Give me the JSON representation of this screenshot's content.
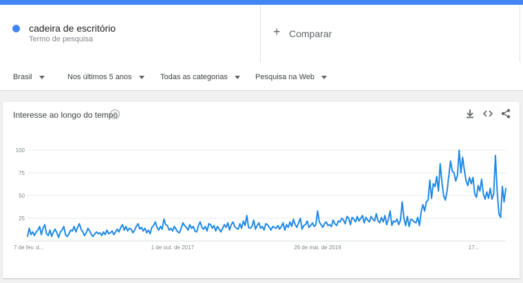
{
  "search": {
    "term": "cadeira de escritório",
    "term_subtitle": "Termo de pesquisa",
    "term_color": "#4285f4",
    "compare_label": "Comparar",
    "compare_icon": "plus-icon"
  },
  "filters": {
    "region": "Brasil",
    "period": "Nos últimos 5 anos",
    "category": "Todas as categorias",
    "search_type": "Pesquisa na Web"
  },
  "card": {
    "title": "Interesse ao longo do tempo",
    "help_icon": "?",
    "tools": [
      "download-icon",
      "embed-icon",
      "share-icon"
    ]
  },
  "chart_data": {
    "type": "line",
    "ylim": [
      0,
      100
    ],
    "yticks": [
      25,
      50,
      75,
      100
    ],
    "ytick_labels": [
      "25",
      "50",
      "75",
      "100"
    ],
    "xtick_labels": [
      "7 de fev. d...",
      "1 de out. de 2017",
      "26 de mai. de 2019",
      "17..."
    ],
    "xtick_index": [
      0,
      84,
      168,
      260
    ],
    "grid": true,
    "line_color": "#1e88e5",
    "series": [
      {
        "values": [
          5,
          14,
          7,
          10,
          6,
          10,
          12,
          16,
          7,
          14,
          18,
          8,
          6,
          12,
          5,
          10,
          13,
          9,
          4,
          10,
          12,
          16,
          7,
          5,
          8,
          12,
          11,
          16,
          10,
          15,
          19,
          13,
          10,
          6,
          9,
          14,
          11,
          7,
          5,
          8,
          10,
          8,
          9,
          6,
          10,
          7,
          12,
          8,
          9,
          11,
          7,
          10,
          13,
          10,
          15,
          18,
          12,
          16,
          11,
          14,
          13,
          9,
          12,
          16,
          19,
          13,
          15,
          11,
          14,
          9,
          12,
          8,
          15,
          17,
          21,
          15,
          12,
          16,
          13,
          24,
          18,
          17,
          12,
          14,
          11,
          16,
          13,
          10,
          9,
          14,
          20,
          17,
          15,
          12,
          18,
          14,
          16,
          11,
          10,
          17,
          21,
          15,
          13,
          16,
          11,
          19,
          18,
          14,
          17,
          11,
          16,
          13,
          10,
          14,
          18,
          15,
          20,
          12,
          18,
          21,
          16,
          14,
          13,
          19,
          14,
          22,
          17,
          28,
          15,
          14,
          16,
          23,
          13,
          17,
          20,
          14,
          16,
          12,
          19,
          18,
          15,
          12,
          16,
          15,
          14,
          17,
          13,
          16,
          20,
          12,
          18,
          15,
          21,
          16,
          24,
          18,
          15,
          20,
          25,
          13,
          17,
          18,
          22,
          15,
          17,
          20,
          16,
          18,
          33,
          21,
          18,
          15,
          19,
          21,
          17,
          18,
          16,
          23,
          19,
          17,
          22,
          21,
          25,
          23,
          19,
          27,
          25,
          18,
          26,
          24,
          21,
          27,
          22,
          25,
          28,
          20,
          26,
          23,
          21,
          27,
          24,
          22,
          30,
          22,
          20,
          26,
          21,
          28,
          18,
          24,
          33,
          17,
          22,
          21,
          24,
          18,
          23,
          43,
          25,
          17,
          27,
          16,
          24,
          23,
          21,
          20,
          26,
          17,
          32,
          40,
          33,
          43,
          45,
          67,
          47,
          63,
          60,
          71,
          55,
          85,
          65,
          50,
          45,
          55,
          72,
          88,
          77,
          75,
          66,
          72,
          100,
          75,
          92,
          78,
          66,
          61,
          70,
          63,
          70,
          52,
          48,
          61,
          55,
          68,
          52,
          46,
          54,
          47,
          58,
          46,
          52,
          94,
          55,
          30,
          26,
          60,
          43,
          58
        ]
      }
    ]
  }
}
